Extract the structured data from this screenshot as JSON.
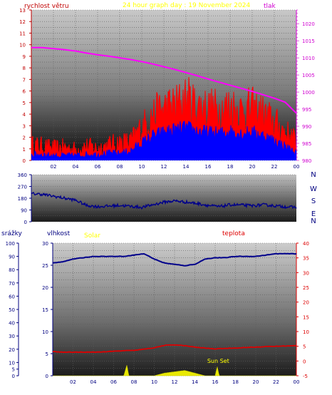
{
  "header": {
    "title": "24 hour graph day : 19 November 2024",
    "left_label": "rychlost větru",
    "right_label": "tlak"
  },
  "compass": [
    "N",
    "W",
    "S",
    "E",
    "N"
  ],
  "colors": {
    "wind_gust": "#ff0000",
    "wind_avg": "#0000ff",
    "pressure": "#ff00ff",
    "direction": "#00008b",
    "humidity": "#00008b",
    "temperature": "#dd0000",
    "solar": "#ffff00",
    "title": "#ffff00",
    "left_axis": "#c00000",
    "right_axis": "#d000d0",
    "temp_axis": "#dd0000",
    "humidity_axis": "#000080"
  },
  "chart_data": [
    {
      "type": "line",
      "name": "wind-pressure",
      "xticks": [
        "02",
        "04",
        "06",
        "08",
        "10",
        "12",
        "14",
        "16",
        "18",
        "20",
        "22",
        "00"
      ],
      "ylim_left": [
        0,
        13
      ],
      "yticks_left": [
        0,
        1,
        2,
        3,
        4,
        5,
        6,
        7,
        8,
        9,
        10,
        11,
        12,
        13
      ],
      "ylim_right": [
        980,
        1024
      ],
      "yticks_right": [
        980,
        985,
        990,
        995,
        1000,
        1005,
        1010,
        1015,
        1020
      ],
      "series": [
        {
          "name": "",
          "axis": "left",
          "x": [
            0,
            1,
            2,
            3,
            4,
            5,
            6,
            7,
            8,
            9,
            10,
            11,
            12,
            13,
            14,
            15,
            16,
            17,
            18,
            19,
            20,
            21,
            22,
            23,
            24
          ],
          "values": [
            1.3,
            1.2,
            1.0,
            1.1,
            0.9,
            1.2,
            1.0,
            1.3,
            1.5,
            1.6,
            2.8,
            3.8,
            4.4,
            4.6,
            5.2,
            4.6,
            4.4,
            4.3,
            4.6,
            4.2,
            4.4,
            3.9,
            3.2,
            2.4,
            1.6
          ]
        },
        {
          "name": "",
          "axis": "left",
          "x": [
            0,
            1,
            2,
            3,
            4,
            5,
            6,
            7,
            8,
            9,
            10,
            11,
            12,
            13,
            14,
            15,
            16,
            17,
            18,
            19,
            20,
            21,
            22,
            23,
            24
          ],
          "values": [
            0.5,
            0.5,
            0.4,
            0.4,
            0.4,
            0.5,
            0.5,
            0.6,
            0.6,
            0.8,
            1.5,
            2.1,
            2.4,
            2.6,
            2.8,
            2.5,
            2.4,
            2.3,
            2.5,
            2.3,
            2.4,
            2.1,
            1.7,
            1.2,
            0.6
          ]
        },
        {
          "name": "",
          "axis": "right",
          "x": [
            0,
            1,
            2,
            3,
            4,
            5,
            6,
            7,
            8,
            9,
            10,
            11,
            12,
            13,
            14,
            15,
            16,
            17,
            18,
            19,
            20,
            21,
            22,
            23,
            24
          ],
          "values": [
            1013.0,
            1013.0,
            1012.7,
            1012.4,
            1012.0,
            1011.4,
            1010.9,
            1010.5,
            1010.0,
            1009.5,
            1008.9,
            1008.2,
            1007.4,
            1006.6,
            1005.7,
            1004.8,
            1003.8,
            1002.9,
            1002.0,
            1001.1,
            1000.2,
            999.2,
            998.2,
            997.0,
            993.8
          ]
        }
      ]
    },
    {
      "type": "line",
      "name": "wind-direction",
      "xticks": [],
      "ylim": [
        0,
        360
      ],
      "yticks": [
        0,
        90,
        180,
        270,
        360
      ],
      "series": [
        {
          "name": "",
          "x": [
            0,
            1,
            2,
            3,
            4,
            5,
            6,
            7,
            8,
            9,
            10,
            11,
            12,
            13,
            14,
            15,
            16,
            17,
            18,
            19,
            20,
            21,
            22,
            23,
            24
          ],
          "values": [
            215,
            210,
            195,
            180,
            165,
            125,
            115,
            120,
            125,
            118,
            110,
            130,
            150,
            160,
            150,
            140,
            125,
            115,
            130,
            128,
            122,
            130,
            122,
            115,
            110
          ]
        }
      ]
    },
    {
      "type": "line",
      "name": "rain-humidity-temperature",
      "xticks": [
        "02",
        "04",
        "06",
        "08",
        "10",
        "12",
        "14",
        "16",
        "18",
        "20",
        "22",
        "00"
      ],
      "ylim_rain": [
        0,
        100
      ],
      "yticks_rain": [
        0,
        5,
        10,
        20,
        30,
        40,
        50,
        60,
        70,
        80,
        90,
        100
      ],
      "ylim_humidity": [
        0,
        30
      ],
      "yticks_humidity": [
        0,
        5,
        10,
        15,
        20,
        25,
        30
      ],
      "ylim_temperature": [
        -5,
        40
      ],
      "yticks_temperature": [
        -5,
        0,
        5,
        10,
        15,
        20,
        25,
        30,
        35,
        40
      ],
      "labels": {
        "rain": "srážky",
        "humidity": "vlhkost",
        "solar": "Solar",
        "temperature": "teplota"
      },
      "annotations": [
        {
          "text": "Sun Set",
          "x": 16.3
        }
      ],
      "series": [
        {
          "name": "",
          "x": [
            0,
            1,
            2,
            3,
            4,
            5,
            6,
            7,
            8,
            9,
            10,
            11,
            12,
            13,
            14,
            15,
            16,
            17,
            18,
            19,
            20,
            21,
            22,
            23,
            24
          ],
          "values": [
            85,
            86,
            88,
            89,
            90,
            90,
            90,
            90,
            91,
            92,
            88,
            85,
            84,
            83,
            84,
            88,
            89,
            89,
            90,
            90,
            90,
            91,
            92,
            92,
            92
          ]
        },
        {
          "name": "",
          "x": [
            0,
            1,
            2,
            3,
            4,
            5,
            6,
            7,
            8,
            9,
            10,
            11,
            12,
            13,
            14,
            15,
            16,
            17,
            18,
            19,
            20,
            21,
            22,
            23,
            24
          ],
          "values": [
            3.2,
            3.0,
            3.0,
            3.0,
            3.0,
            3.1,
            3.3,
            3.5,
            3.6,
            4.0,
            4.5,
            5.3,
            5.5,
            5.2,
            4.7,
            4.4,
            4.1,
            4.3,
            4.4,
            4.6,
            4.7,
            4.9,
            5.0,
            5.1,
            5.2
          ]
        },
        {
          "name": "",
          "x": [
            0,
            6,
            7,
            7.3,
            7.5,
            8,
            9,
            10,
            10.5,
            11,
            11.5,
            12,
            12.5,
            13,
            13.5,
            14,
            14.5,
            15,
            16,
            16.2,
            16.4,
            17,
            24
          ],
          "values": [
            0,
            0,
            0,
            8,
            0,
            0,
            0,
            0,
            1,
            2,
            2.5,
            3,
            3.5,
            4,
            3,
            2,
            1,
            0,
            0,
            7,
            0,
            0,
            0
          ]
        }
      ]
    }
  ]
}
